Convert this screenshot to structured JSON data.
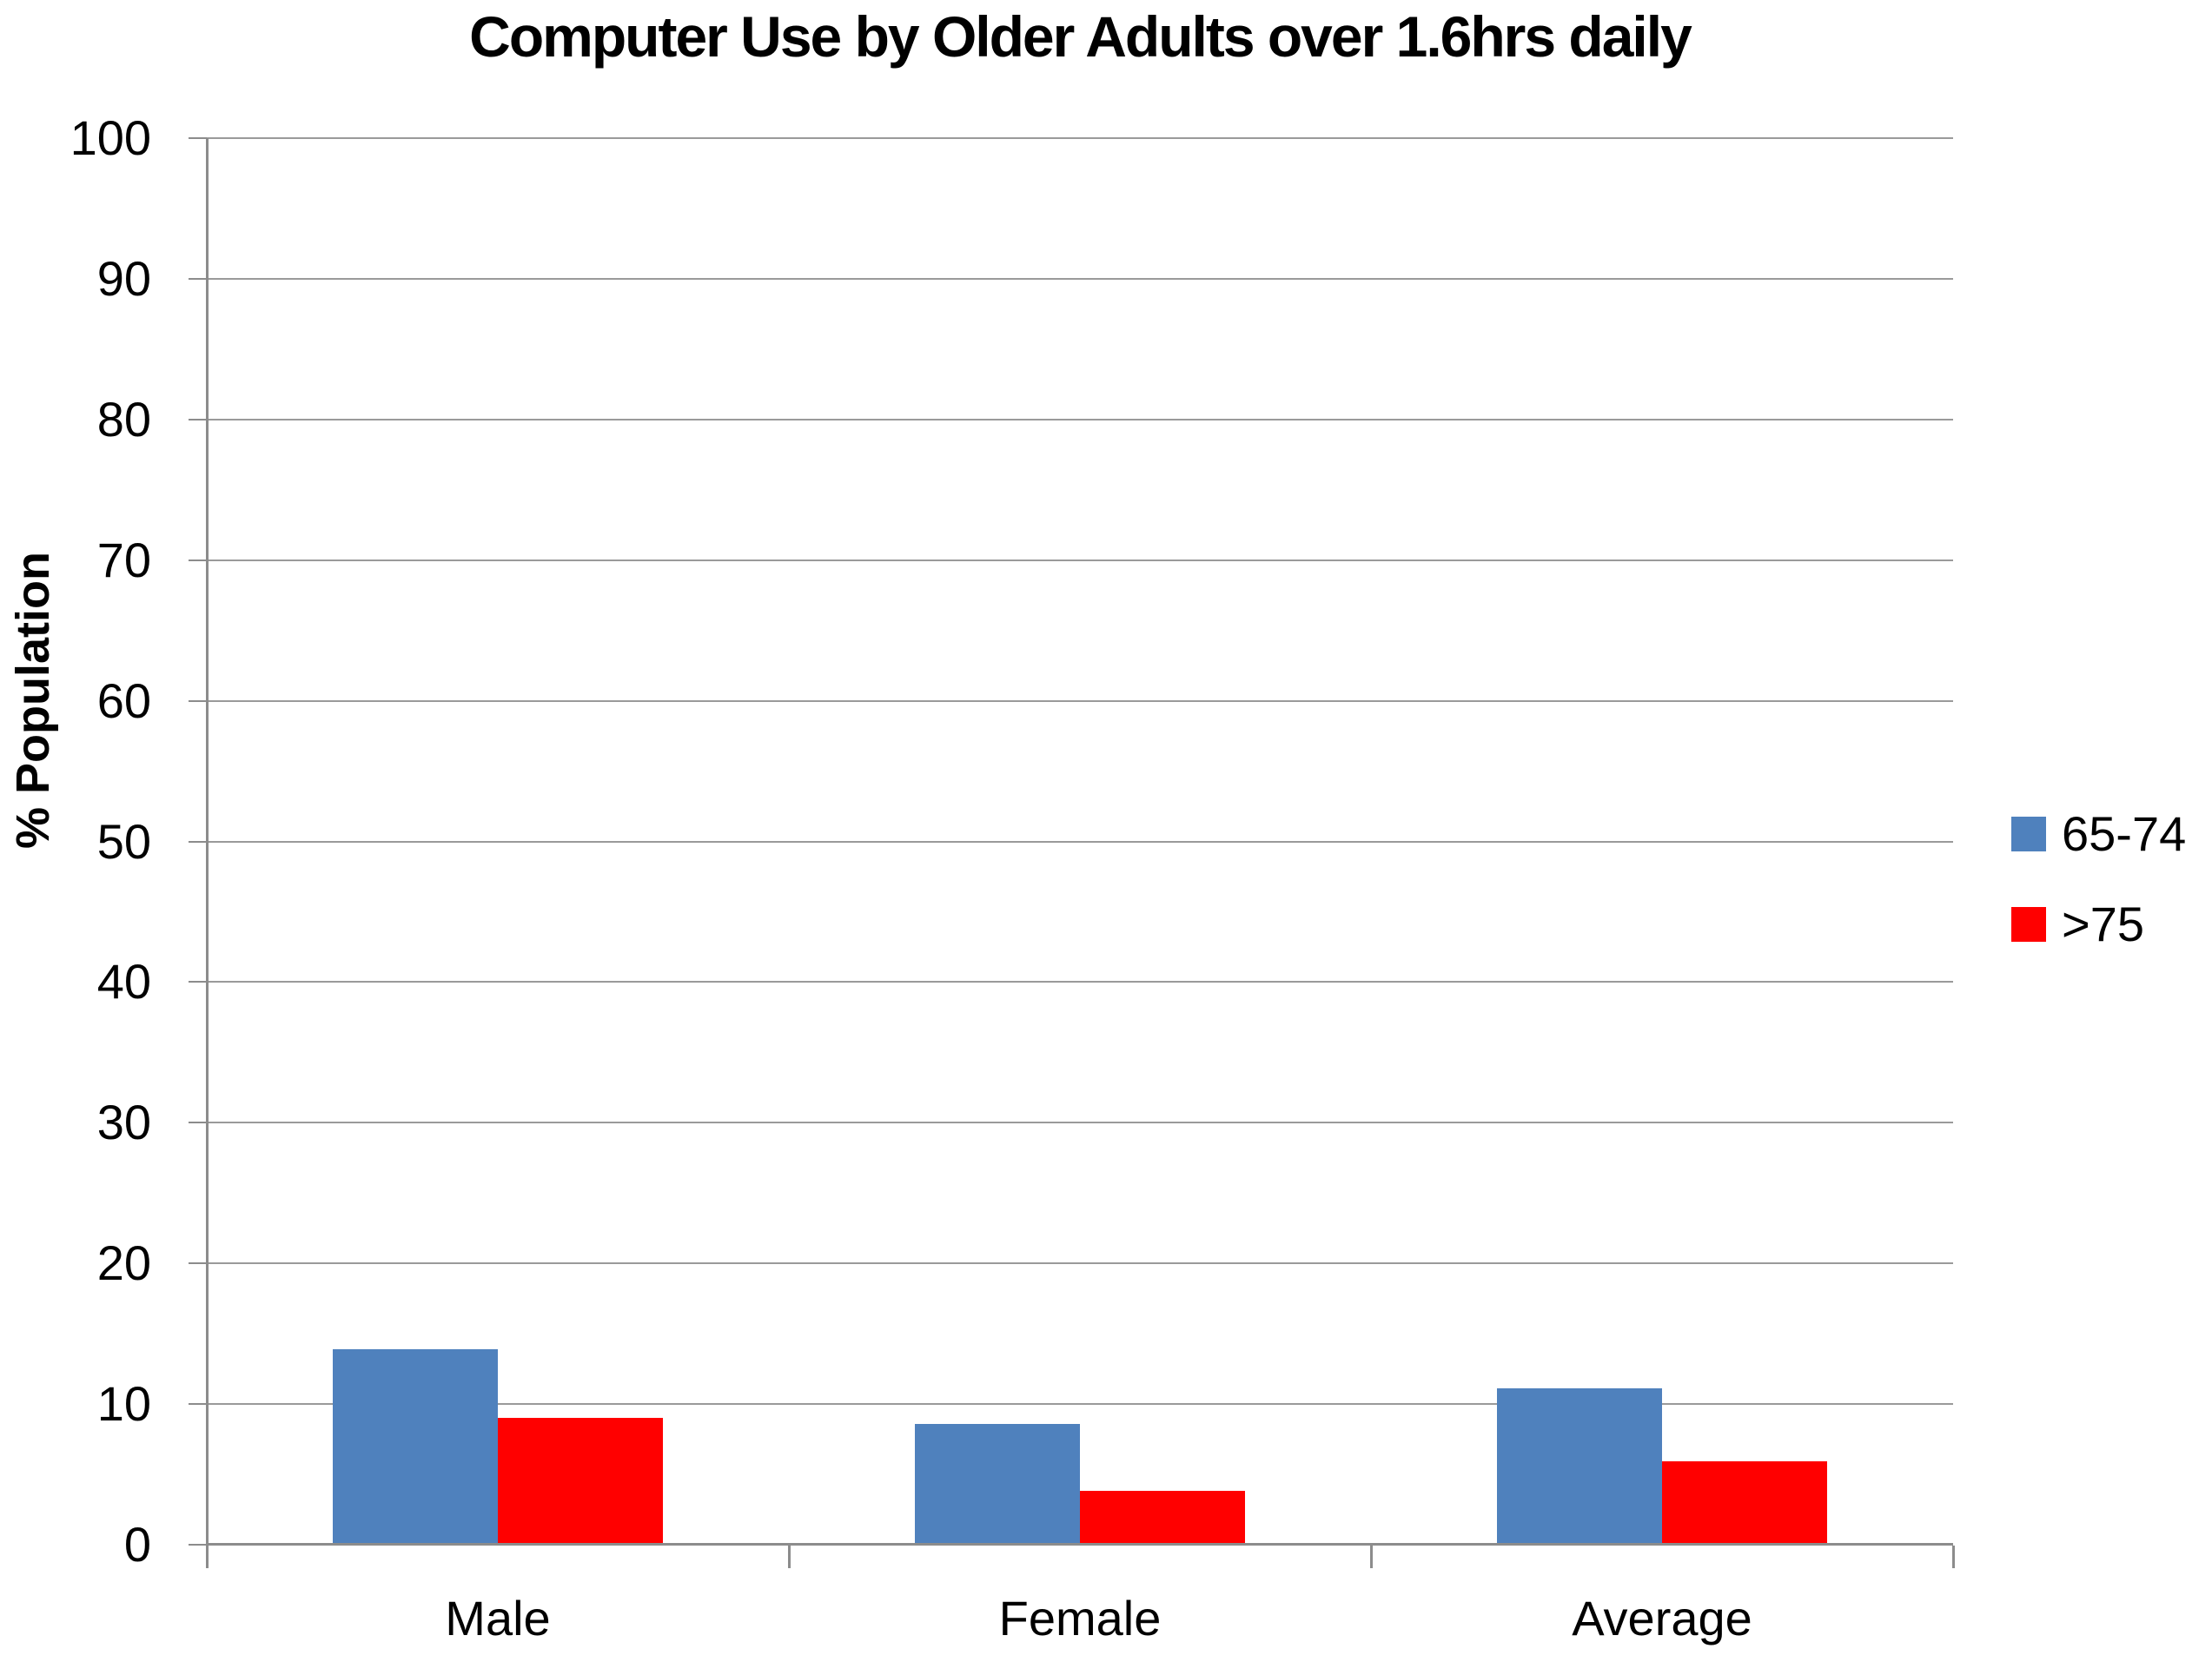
{
  "chart_data": {
    "type": "bar",
    "title": "Computer Use by Older Adults over 1.6hrs daily",
    "xlabel": "",
    "ylabel": "% Population",
    "categories": [
      "Male",
      "Female",
      "Average"
    ],
    "series": [
      {
        "name": "65-74",
        "color": "#4F81BD",
        "values": [
          13.9,
          8.6,
          11.1
        ]
      },
      {
        "name": ">75",
        "color": "#FF0000",
        "values": [
          9.0,
          3.8,
          5.9
        ]
      }
    ],
    "ylim": [
      0,
      100
    ],
    "yticks": [
      0,
      10,
      20,
      30,
      40,
      50,
      60,
      70,
      80,
      90,
      100
    ],
    "grid": true,
    "legend_position": "right",
    "colors": {
      "gridline": "#9a9a9a",
      "axis": "#8c8c8c",
      "text": "#000000",
      "background": "#ffffff"
    }
  }
}
